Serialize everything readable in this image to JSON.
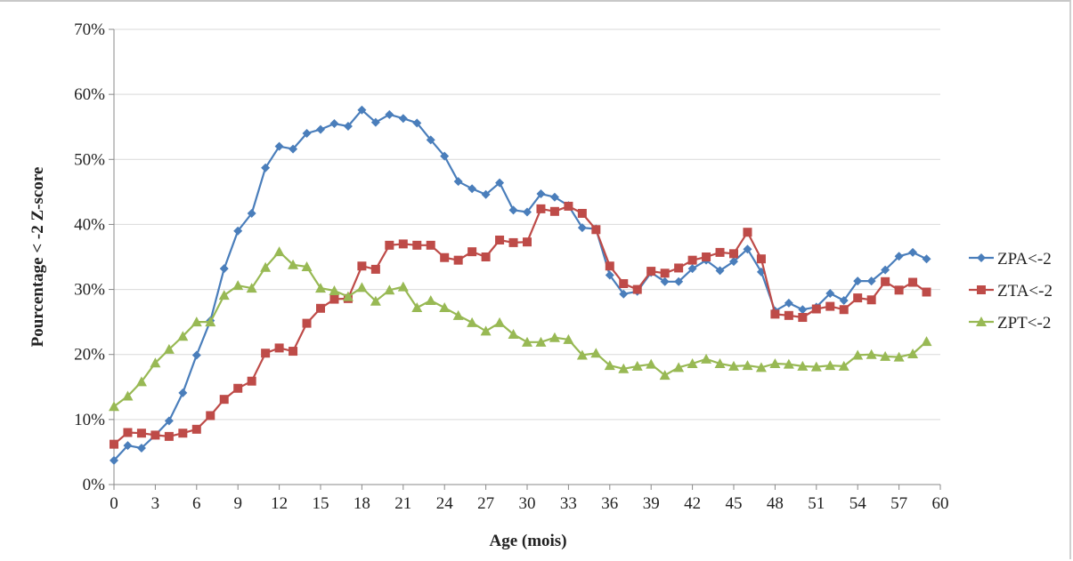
{
  "chart_data": {
    "type": "line",
    "title": "",
    "xlabel": "Age (mois)",
    "ylabel": "Pourcentage < -2 Z-score",
    "xlim": [
      0,
      60
    ],
    "ylim": [
      0,
      70
    ],
    "x_ticks": [
      "0",
      "3",
      "6",
      "9",
      "12",
      "15",
      "18",
      "21",
      "24",
      "27",
      "30",
      "33",
      "36",
      "39",
      "42",
      "45",
      "48",
      "51",
      "54",
      "57",
      "60"
    ],
    "y_ticks": [
      "0%",
      "10%",
      "20%",
      "30%",
      "40%",
      "50%",
      "60%",
      "70%"
    ],
    "grid": true,
    "legend_position": "right",
    "x": [
      0,
      1,
      2,
      3,
      4,
      5,
      6,
      7,
      8,
      9,
      10,
      11,
      12,
      13,
      14,
      15,
      16,
      17,
      18,
      19,
      20,
      21,
      22,
      23,
      24,
      25,
      26,
      27,
      28,
      29,
      30,
      31,
      32,
      33,
      34,
      35,
      36,
      37,
      38,
      39,
      40,
      41,
      42,
      43,
      44,
      45,
      46,
      47,
      48,
      49,
      50,
      51,
      52,
      53,
      54,
      55,
      56,
      57,
      58,
      59
    ],
    "series": [
      {
        "name": "ZPA<-2",
        "color": "#4a7ebb",
        "marker": "diamond",
        "values": [
          3.7,
          6,
          5.6,
          7.6,
          9.8,
          14.1,
          19.9,
          25.2,
          33.2,
          39,
          41.7,
          48.7,
          52,
          51.6,
          54,
          54.6,
          55.5,
          55.1,
          57.6,
          55.7,
          56.9,
          56.3,
          55.6,
          53,
          50.5,
          46.6,
          45.5,
          44.6,
          46.4,
          42.2,
          41.9,
          44.7,
          44.2,
          42.9,
          39.5,
          39.3,
          32.2,
          29.3,
          29.7,
          32.6,
          31.2,
          31.2,
          33.2,
          34.5,
          32.9,
          34.3,
          36.2,
          32.7,
          26.7,
          27.9,
          26.9,
          27.3,
          29.4,
          28.3,
          31.3,
          31.3,
          33,
          35.1,
          35.7,
          34.7
        ]
      },
      {
        "name": "ZTA<-2",
        "color": "#be4b48",
        "marker": "square",
        "values": [
          6.2,
          8,
          7.9,
          7.6,
          7.4,
          7.9,
          8.5,
          10.6,
          13.1,
          14.8,
          15.9,
          20.2,
          21,
          20.5,
          24.8,
          27.1,
          28.5,
          28.6,
          33.6,
          33.1,
          36.8,
          37,
          36.8,
          36.8,
          34.9,
          34.5,
          35.8,
          35,
          37.6,
          37.2,
          37.3,
          42.4,
          42,
          42.8,
          41.7,
          39.2,
          33.6,
          30.9,
          30,
          32.8,
          32.5,
          33.3,
          34.5,
          35,
          35.7,
          35.5,
          38.8,
          34.7,
          26.2,
          26,
          25.7,
          27,
          27.4,
          26.9,
          28.7,
          28.4,
          31.2,
          29.9,
          31.1,
          29.6
        ]
      },
      {
        "name": "ZPT<-2",
        "color": "#98b954",
        "marker": "triangle",
        "values": [
          12,
          13.6,
          15.8,
          18.7,
          20.8,
          22.8,
          25,
          25,
          29.1,
          30.6,
          30.2,
          33.4,
          35.8,
          33.8,
          33.5,
          30.2,
          29.8,
          28.9,
          30.3,
          28.2,
          29.9,
          30.4,
          27.2,
          28.3,
          27.2,
          26,
          24.9,
          23.6,
          24.9,
          23.1,
          21.9,
          21.9,
          22.6,
          22.3,
          19.9,
          20.2,
          18.3,
          17.8,
          18.2,
          18.5,
          16.8,
          18,
          18.6,
          19.3,
          18.6,
          18.2,
          18.3,
          18,
          18.6,
          18.5,
          18.2,
          18.1,
          18.3,
          18.2,
          19.9,
          20,
          19.7,
          19.6,
          20.1,
          22
        ]
      }
    ]
  }
}
